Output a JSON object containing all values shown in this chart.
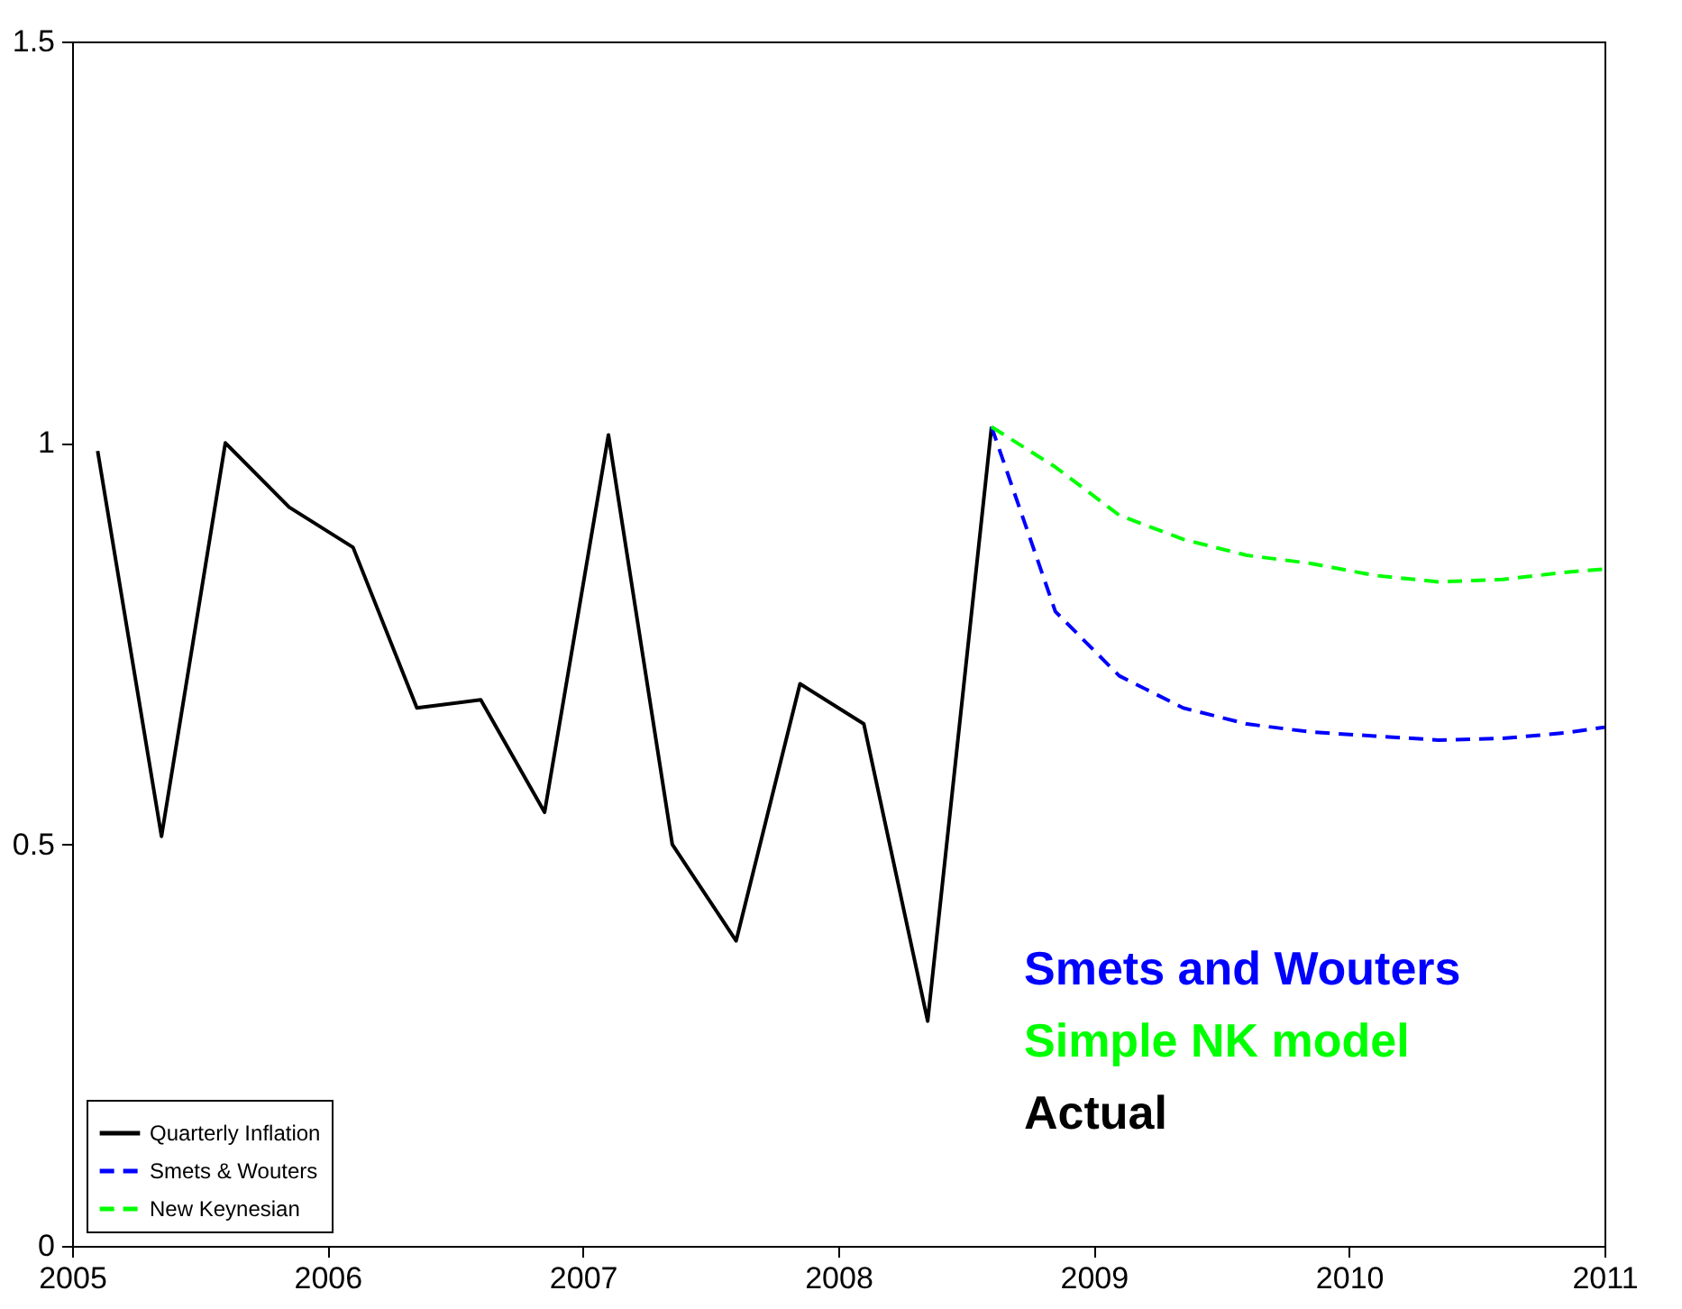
{
  "chart_data": {
    "type": "line",
    "xlim": [
      2005,
      2011
    ],
    "ylim": [
      0,
      1.5
    ],
    "xticks": [
      2005,
      2006,
      2007,
      2008,
      2009,
      2010,
      2011
    ],
    "yticks": [
      0,
      0.5,
      1,
      1.5
    ],
    "grid": false,
    "legend": "bottom left",
    "marker": "none",
    "series": [
      {
        "name": "Quarterly Inflation",
        "color": "#000000",
        "line_style": "solid",
        "x": [
          2005.1,
          2005.35,
          2005.6,
          2005.85,
          2006.1,
          2006.35,
          2006.6,
          2006.85,
          2007.1,
          2007.35,
          2007.6,
          2007.85,
          2008.1,
          2008.35,
          2008.6
        ],
        "values": [
          0.99,
          0.51,
          1.0,
          0.92,
          0.87,
          0.67,
          0.68,
          0.54,
          1.01,
          0.5,
          0.38,
          0.7,
          0.65,
          0.28,
          1.02
        ]
      },
      {
        "name": "Smets & Wouters",
        "color": "#0000ff",
        "line_style": "dashed",
        "x": [
          2008.6,
          2008.85,
          2009.1,
          2009.35,
          2009.6,
          2009.85,
          2010.1,
          2010.35,
          2010.6,
          2010.85,
          2011
        ],
        "values": [
          1.02,
          0.79,
          0.71,
          0.67,
          0.65,
          0.64,
          0.635,
          0.63,
          0.632,
          0.639,
          0.646
        ]
      },
      {
        "name": "New Keynesian",
        "color": "#00ff00",
        "line_style": "dashed",
        "x": [
          2008.6,
          2008.85,
          2009.1,
          2009.35,
          2009.6,
          2009.85,
          2010.1,
          2010.35,
          2010.6,
          2010.85,
          2011
        ],
        "values": [
          1.02,
          0.97,
          0.91,
          0.88,
          0.86,
          0.85,
          0.835,
          0.827,
          0.83,
          0.839,
          0.843
        ]
      }
    ],
    "annotations": [
      "Smets and Wouters",
      "Simple NK model",
      "Actual"
    ]
  }
}
